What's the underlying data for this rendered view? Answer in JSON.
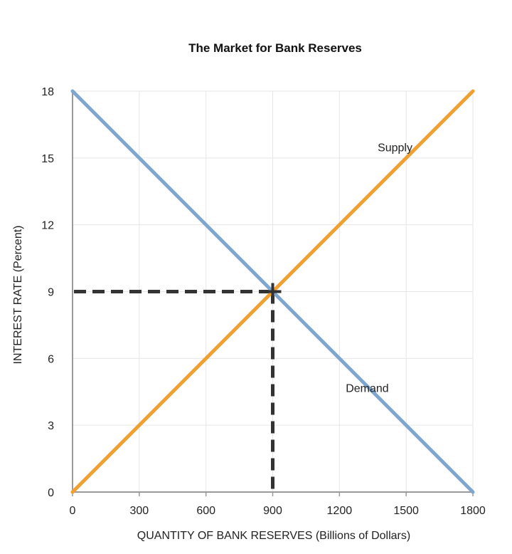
{
  "chart_data": {
    "type": "line",
    "title": "The Market for Bank Reserves",
    "xlabel": "QUANTITY OF BANK RESERVES (Billions of Dollars)",
    "ylabel": "INTEREST RATE (Percent)",
    "xlim": [
      0,
      1800
    ],
    "ylim": [
      0,
      18
    ],
    "x_ticks": [
      0,
      300,
      600,
      900,
      1200,
      1500,
      1800
    ],
    "y_ticks": [
      0,
      3,
      6,
      9,
      12,
      15,
      18
    ],
    "grid": true,
    "series": [
      {
        "name": "Supply",
        "x": [
          0,
          1800
        ],
        "y": [
          0,
          18
        ],
        "color": "#f0a030"
      },
      {
        "name": "Demand",
        "x": [
          0,
          1800
        ],
        "y": [
          18,
          0
        ],
        "color": "#7fa6cf"
      }
    ],
    "series_labels": [
      {
        "text": "Supply",
        "x": 1450,
        "y": 15.3
      },
      {
        "text": "Demand",
        "x": 1325,
        "y": 4.5
      }
    ],
    "equilibrium": {
      "x": 900,
      "y": 9,
      "marker": "+"
    },
    "reference_lines_color": "#333333"
  }
}
